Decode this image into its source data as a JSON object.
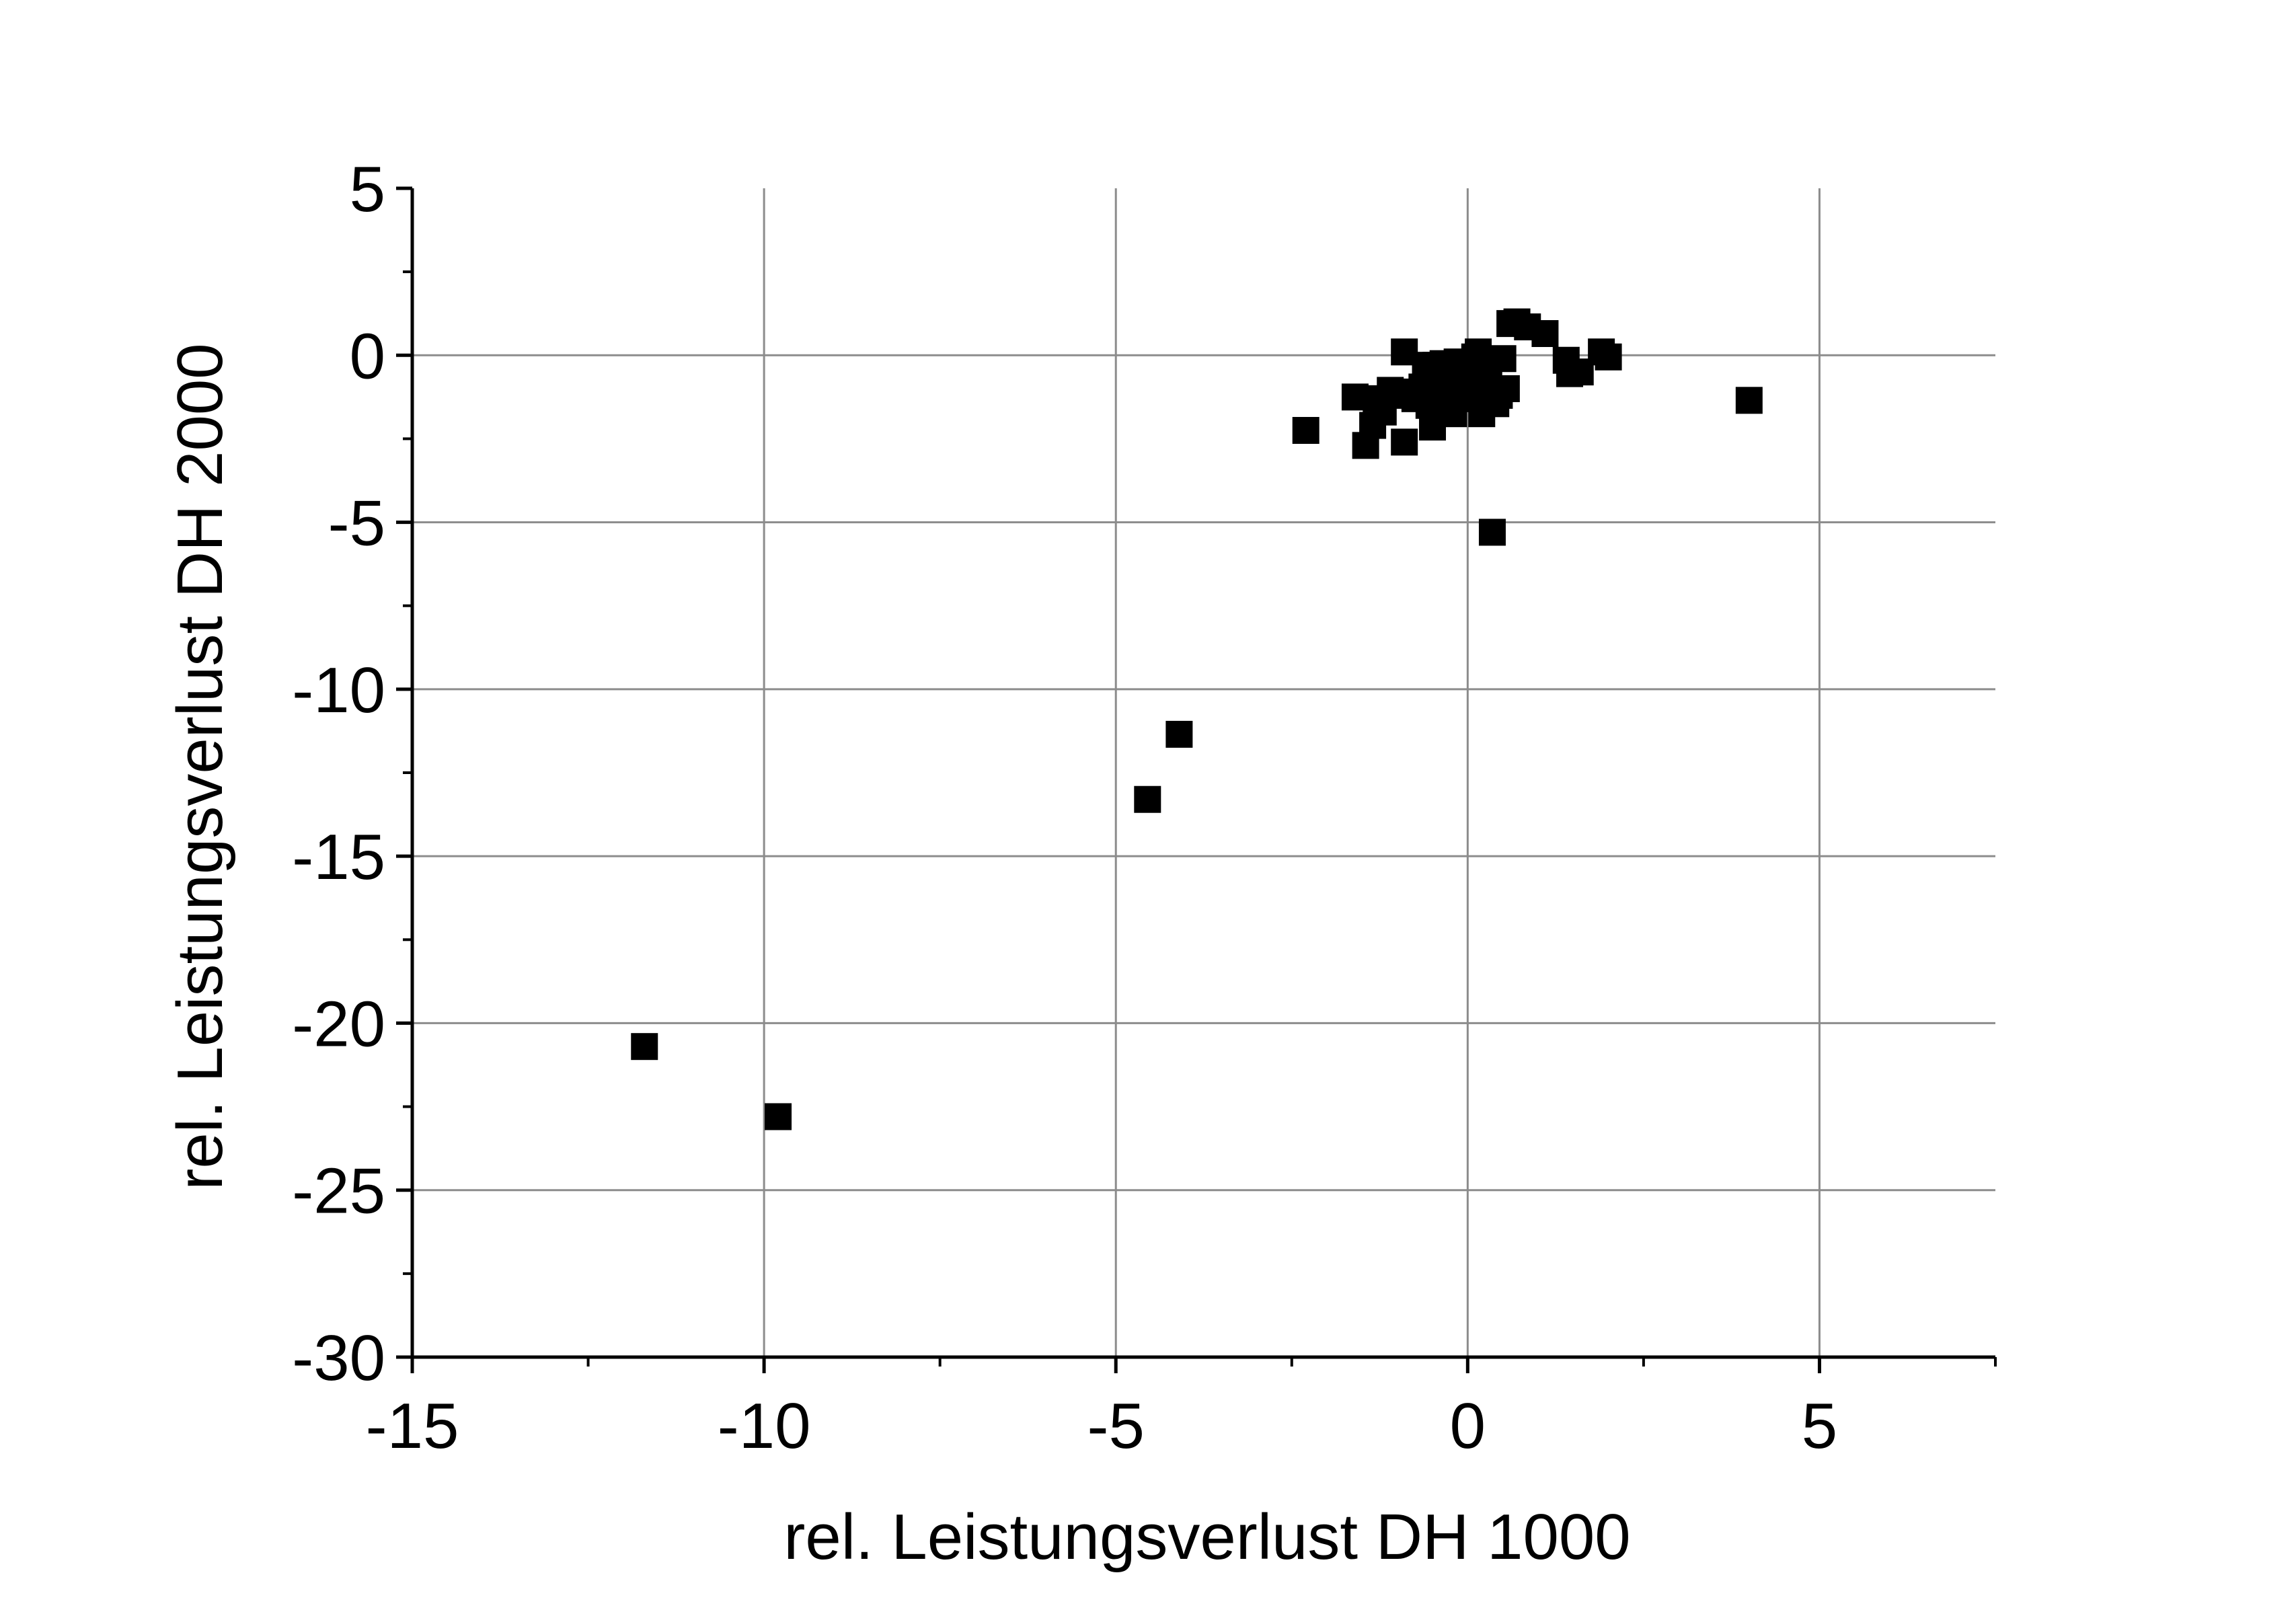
{
  "chart_data": {
    "type": "scatter",
    "title": "",
    "xlabel": "rel. Leistungsverlust DH 1000",
    "ylabel": "rel. Leistungsverlust DH 2000",
    "xlim": [
      -15,
      7.5
    ],
    "ylim": [
      -30,
      5
    ],
    "x_ticks": [
      -15,
      -10,
      -5,
      0,
      5
    ],
    "x_tick_labels": [
      "-15",
      "-10",
      "-5",
      "0",
      "5"
    ],
    "y_ticks": [
      -30,
      -25,
      -20,
      -15,
      -10,
      -5,
      0,
      5
    ],
    "y_tick_labels": [
      "-30",
      "-25",
      "-20",
      "-15",
      "-10",
      "-5",
      "0",
      "5"
    ],
    "grid": true,
    "legend": "none",
    "marker": "square",
    "marker_color": "#000000",
    "grid_color": "#8c8c8c",
    "series": [
      {
        "x": [
          -11.7,
          -9.8,
          -4.55,
          -4.1,
          -2.3,
          -1.6,
          -1.45,
          -1.35,
          -1.3,
          -1.2,
          -1.1,
          -1.0,
          -0.9,
          -0.9,
          -0.85,
          -0.75,
          -0.65,
          -0.6,
          -0.55,
          -0.5,
          -0.45,
          -0.4,
          -0.35,
          -0.3,
          -0.25,
          -0.2,
          -0.15,
          -0.1,
          -0.05,
          0.0,
          0.05,
          0.1,
          0.15,
          0.2,
          0.25,
          0.3,
          0.35,
          0.4,
          0.45,
          0.5,
          0.55,
          0.6,
          0.7,
          0.85,
          1.1,
          1.4,
          1.45,
          1.6,
          1.9,
          2.0,
          4.0
        ],
        "y": [
          -20.7,
          -22.8,
          -13.3,
          -11.35,
          -2.25,
          -1.25,
          -2.7,
          -2.1,
          -1.3,
          -1.7,
          -1.05,
          -1.1,
          0.1,
          -2.6,
          -1.2,
          -1.3,
          -0.95,
          -0.3,
          -1.5,
          -2.15,
          -0.3,
          -1.0,
          -0.25,
          -0.7,
          -0.4,
          -1.75,
          -0.2,
          -1.3,
          -0.9,
          -0.35,
          -1.1,
          -0.05,
          0.1,
          -1.75,
          -0.8,
          -0.4,
          -5.3,
          -1.45,
          -1.2,
          -0.1,
          -1.0,
          0.95,
          1.0,
          0.85,
          0.65,
          -0.15,
          -0.55,
          -0.5,
          0.1,
          -0.05,
          -1.35
        ]
      }
    ]
  }
}
